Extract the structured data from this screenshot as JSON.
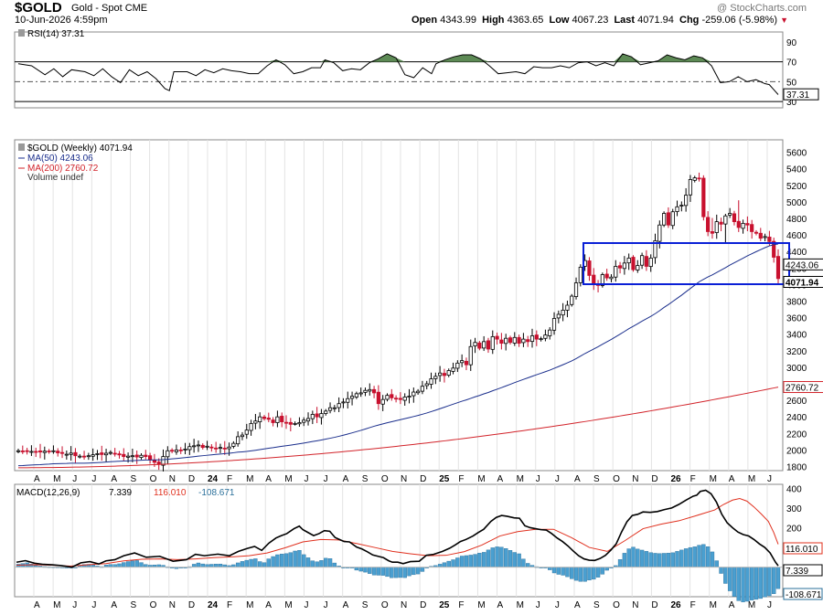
{
  "header": {
    "symbol": "$GOLD",
    "description": "Gold - Spot CME",
    "date": "10-Jun-2026 4:59pm",
    "open_label": "Open",
    "open": "4343.99",
    "high_label": "High",
    "high": "4363.65",
    "low_label": "Low",
    "low": "4067.23",
    "last_label": "Last",
    "last": "4071.94",
    "chg_label": "Chg",
    "chg": "-259.06 (-5.98%)",
    "watermark": "@ StockCharts.com"
  },
  "colors": {
    "up_candle": "#ffffff",
    "down_candle": "#c8102e",
    "ma50": "#1a2e8c",
    "ma200": "#d2232a",
    "macd": "#000000",
    "signal": "#e0301e",
    "histogram": "#4a9fd0",
    "rsi_fill": "#5d8a55",
    "box": "#0a1fd6"
  },
  "chart_data": [
    {
      "type": "line",
      "title": "RSI(14) 37.31",
      "legend": [
        "RSI(14) 37.31"
      ],
      "yticks": [
        30,
        50,
        70,
        90
      ],
      "ylim": [
        20,
        100
      ],
      "reference_lines": [
        70,
        50,
        30
      ],
      "last_value_label": "37.31",
      "points": [
        [
          0,
          68
        ],
        [
          3,
          66
        ],
        [
          6,
          57
        ],
        [
          8,
          63
        ],
        [
          10,
          55
        ],
        [
          12,
          62
        ],
        [
          15,
          60
        ],
        [
          17,
          56
        ],
        [
          19,
          63
        ],
        [
          21,
          55
        ],
        [
          23,
          49
        ],
        [
          25,
          62
        ],
        [
          27,
          56
        ],
        [
          29,
          60
        ],
        [
          31,
          53
        ],
        [
          33,
          43
        ],
        [
          34,
          41
        ],
        [
          35,
          60
        ],
        [
          38,
          60
        ],
        [
          40,
          56
        ],
        [
          42,
          62
        ],
        [
          44,
          59
        ],
        [
          46,
          63
        ],
        [
          48,
          61
        ],
        [
          50,
          60
        ],
        [
          52,
          58
        ],
        [
          54,
          58
        ],
        [
          56,
          66
        ],
        [
          58,
          72
        ],
        [
          60,
          67
        ],
        [
          62,
          58
        ],
        [
          64,
          60
        ],
        [
          66,
          64
        ],
        [
          68,
          64
        ],
        [
          69,
          72
        ],
        [
          71,
          69
        ],
        [
          73,
          61
        ],
        [
          75,
          63
        ],
        [
          77,
          62
        ],
        [
          79,
          69
        ],
        [
          81,
          73
        ],
        [
          83,
          78
        ],
        [
          85,
          74
        ],
        [
          87,
          57
        ],
        [
          89,
          54
        ],
        [
          91,
          64
        ],
        [
          93,
          58
        ],
        [
          94,
          68
        ],
        [
          96,
          72
        ],
        [
          98,
          75
        ],
        [
          100,
          77
        ],
        [
          102,
          77
        ],
        [
          104,
          73
        ],
        [
          106,
          66
        ],
        [
          108,
          58
        ],
        [
          110,
          59
        ],
        [
          112,
          60
        ],
        [
          114,
          58
        ],
        [
          116,
          65
        ],
        [
          118,
          64
        ],
        [
          120,
          64
        ],
        [
          122,
          66
        ],
        [
          124,
          64
        ],
        [
          126,
          69
        ],
        [
          128,
          70
        ],
        [
          130,
          66
        ],
        [
          132,
          69
        ],
        [
          134,
          66
        ],
        [
          136,
          78
        ],
        [
          138,
          75
        ],
        [
          140,
          67
        ],
        [
          142,
          69
        ],
        [
          144,
          71
        ],
        [
          146,
          77
        ],
        [
          148,
          74
        ],
        [
          150,
          72
        ],
        [
          152,
          76
        ],
        [
          154,
          74
        ],
        [
          156,
          66
        ],
        [
          158,
          49
        ],
        [
          160,
          50
        ],
        [
          162,
          55
        ],
        [
          164,
          50
        ],
        [
          166,
          52
        ],
        [
          168,
          48
        ],
        [
          169,
          47
        ],
        [
          170,
          42
        ],
        [
          171,
          37
        ]
      ]
    },
    {
      "type": "candlestick",
      "legend": [
        "$GOLD (Weekly) 4071.94",
        "MA(50) 4243.06",
        "MA(200) 2760.72",
        "Volume undef"
      ],
      "x_axis_labels": [
        "A",
        "M",
        "J",
        "J",
        "A",
        "S",
        "O",
        "N",
        "D",
        "24",
        "F",
        "M",
        "A",
        "M",
        "J",
        "J",
        "A",
        "S",
        "O",
        "N",
        "D",
        "25",
        "F",
        "M",
        "A",
        "M",
        "J",
        "J",
        "A",
        "S",
        "O",
        "N",
        "D",
        "26",
        "F",
        "M",
        "A",
        "M",
        "J"
      ],
      "yticks": [
        1800,
        2000,
        2200,
        2400,
        2600,
        2800,
        3000,
        3200,
        3400,
        3600,
        3800,
        4000,
        4200,
        4400,
        4600,
        4800,
        5000,
        5200,
        5400,
        5600
      ],
      "ylim": [
        1750,
        5750
      ],
      "price_labels": [
        "4243.06",
        "4071.94",
        "2760.72"
      ],
      "closes": [
        1990,
        1985,
        1990,
        1982,
        1980,
        1975,
        1985,
        1978,
        1990,
        1965,
        1958,
        1948,
        1962,
        1930,
        1925,
        1918,
        1930,
        1942,
        1955,
        1945,
        1960,
        1970,
        1955,
        1940,
        1920,
        1925,
        1930,
        1915,
        1935,
        1920,
        1880,
        1850,
        1825,
        1920,
        1990,
        1985,
        2000,
        1995,
        2010,
        2040,
        2050,
        2060,
        2030,
        2045,
        2025,
        2020,
        2030,
        2015,
        2035,
        2080,
        2160,
        2180,
        2240,
        2320,
        2350,
        2400,
        2380,
        2370,
        2330,
        2400,
        2340,
        2330,
        2310,
        2320,
        2330,
        2360,
        2380,
        2430,
        2400,
        2440,
        2470,
        2510,
        2510,
        2560,
        2580,
        2620,
        2650,
        2680,
        2690,
        2720,
        2730,
        2690,
        2560,
        2610,
        2660,
        2630,
        2620,
        2610,
        2640,
        2650,
        2700,
        2710,
        2770,
        2800,
        2860,
        2890,
        2930,
        2900,
        2960,
        2990,
        3050,
        3080,
        3030,
        3250,
        3300,
        3230,
        3310,
        3220,
        3370,
        3340,
        3290,
        3350,
        3300,
        3360,
        3290,
        3340,
        3310,
        3380,
        3340,
        3345,
        3390,
        3450,
        3590,
        3640,
        3690,
        3750,
        3860,
        4020,
        4210,
        4290,
        4110,
        4010,
        3990,
        4120,
        4080,
        4090,
        4220,
        4200,
        4260,
        4320,
        4180,
        4230,
        4350,
        4220,
        4320,
        4530,
        4720,
        4860,
        4720,
        4880,
        4940,
        4960,
        5080,
        5270,
        5290,
        5280,
        4820,
        4640,
        4620,
        4760,
        4730,
        4830,
        4860,
        4760,
        4690,
        4740,
        4720,
        4640,
        4620,
        4560,
        4580,
        4520,
        4330,
        4072
      ]
    },
    {
      "type": "line",
      "title": "MACD(12,26,9) 7.339, 116.010, -108.671",
      "legend": [
        "MACD(12,26,9)",
        "7.339",
        "116.010",
        "-108.671"
      ],
      "yticks": [
        0,
        100,
        200,
        300,
        400
      ],
      "ylim": [
        -150,
        420
      ],
      "last_value_labels": [
        "116.010",
        "7.339",
        "-108.671"
      ],
      "macd": [
        [
          0,
          25
        ],
        [
          10,
          33
        ],
        [
          20,
          20
        ],
        [
          30,
          14
        ],
        [
          40,
          12
        ],
        [
          50,
          8
        ],
        [
          62,
          0
        ],
        [
          72,
          22
        ],
        [
          82,
          28
        ],
        [
          92,
          16
        ],
        [
          100,
          32
        ],
        [
          110,
          38
        ],
        [
          120,
          58
        ],
        [
          132,
          72
        ],
        [
          145,
          50
        ],
        [
          160,
          55
        ],
        [
          175,
          30
        ],
        [
          190,
          38
        ],
        [
          200,
          65
        ],
        [
          210,
          58
        ],
        [
          225,
          66
        ],
        [
          238,
          58
        ],
        [
          248,
          80
        ],
        [
          258,
          95
        ],
        [
          266,
          105
        ],
        [
          274,
          85
        ],
        [
          282,
          122
        ],
        [
          290,
          148
        ],
        [
          296,
          160
        ],
        [
          302,
          170
        ],
        [
          310,
          195
        ],
        [
          316,
          208
        ],
        [
          320,
          190
        ],
        [
          326,
          175
        ],
        [
          332,
          160
        ],
        [
          338,
          170
        ],
        [
          344,
          185
        ],
        [
          350,
          182
        ],
        [
          356,
          150
        ],
        [
          360,
          142
        ],
        [
          366,
          130
        ],
        [
          372,
          128
        ],
        [
          380,
          102
        ],
        [
          386,
          92
        ],
        [
          392,
          78
        ],
        [
          398,
          62
        ],
        [
          404,
          55
        ],
        [
          410,
          48
        ],
        [
          416,
          32
        ],
        [
          420,
          25
        ],
        [
          426,
          25
        ],
        [
          432,
          18
        ],
        [
          440,
          28
        ],
        [
          450,
          30
        ],
        [
          458,
          60
        ],
        [
          466,
          65
        ],
        [
          476,
          80
        ],
        [
          484,
          96
        ],
        [
          490,
          112
        ],
        [
          496,
          130
        ],
        [
          502,
          140
        ],
        [
          510,
          158
        ],
        [
          516,
          176
        ],
        [
          522,
          192
        ],
        [
          530,
          232
        ],
        [
          536,
          252
        ],
        [
          542,
          262
        ],
        [
          548,
          258
        ],
        [
          556,
          250
        ],
        [
          562,
          248
        ],
        [
          568,
          210
        ],
        [
          574,
          200
        ],
        [
          580,
          195
        ],
        [
          586,
          190
        ],
        [
          592,
          188
        ],
        [
          598,
          170
        ],
        [
          604,
          148
        ],
        [
          610,
          130
        ],
        [
          616,
          108
        ],
        [
          622,
          82
        ],
        [
          628,
          58
        ],
        [
          634,
          42
        ],
        [
          640,
          35
        ],
        [
          646,
          34
        ],
        [
          652,
          44
        ],
        [
          658,
          60
        ],
        [
          664,
          86
        ],
        [
          670,
          118
        ],
        [
          676,
          178
        ],
        [
          682,
          230
        ],
        [
          688,
          262
        ],
        [
          694,
          268
        ],
        [
          700,
          280
        ],
        [
          708,
          278
        ],
        [
          716,
          282
        ],
        [
          724,
          292
        ],
        [
          732,
          300
        ],
        [
          740,
          318
        ],
        [
          748,
          340
        ],
        [
          756,
          360
        ],
        [
          760,
          365
        ],
        [
          764,
          384
        ],
        [
          770,
          390
        ],
        [
          776,
          372
        ],
        [
          782,
          330
        ],
        [
          788,
          268
        ],
        [
          794,
          225
        ],
        [
          800,
          200
        ],
        [
          806,
          178
        ],
        [
          812,
          165
        ],
        [
          818,
          158
        ],
        [
          824,
          140
        ],
        [
          830,
          118
        ],
        [
          836,
          100
        ],
        [
          842,
          72
        ],
        [
          848,
          25
        ],
        [
          851,
          7
        ]
      ],
      "signal": [
        [
          0,
          10
        ],
        [
          20,
          12
        ],
        [
          40,
          10
        ],
        [
          60,
          5
        ],
        [
          80,
          12
        ],
        [
          100,
          18
        ],
        [
          120,
          32
        ],
        [
          140,
          40
        ],
        [
          160,
          42
        ],
        [
          180,
          38
        ],
        [
          200,
          42
        ],
        [
          220,
          48
        ],
        [
          240,
          52
        ],
        [
          260,
          58
        ],
        [
          280,
          72
        ],
        [
          300,
          98
        ],
        [
          320,
          128
        ],
        [
          340,
          140
        ],
        [
          360,
          138
        ],
        [
          380,
          120
        ],
        [
          400,
          100
        ],
        [
          420,
          80
        ],
        [
          440,
          68
        ],
        [
          460,
          58
        ],
        [
          480,
          60
        ],
        [
          500,
          78
        ],
        [
          520,
          112
        ],
        [
          540,
          158
        ],
        [
          560,
          180
        ],
        [
          580,
          192
        ],
        [
          600,
          192
        ],
        [
          620,
          150
        ],
        [
          640,
          100
        ],
        [
          660,
          80
        ],
        [
          680,
          135
        ],
        [
          700,
          195
        ],
        [
          720,
          218
        ],
        [
          740,
          235
        ],
        [
          760,
          262
        ],
        [
          780,
          290
        ],
        [
          790,
          318
        ],
        [
          800,
          340
        ],
        [
          808,
          348
        ],
        [
          816,
          335
        ],
        [
          824,
          305
        ],
        [
          832,
          270
        ],
        [
          840,
          232
        ],
        [
          846,
          176
        ],
        [
          851,
          116
        ]
      ]
    }
  ]
}
